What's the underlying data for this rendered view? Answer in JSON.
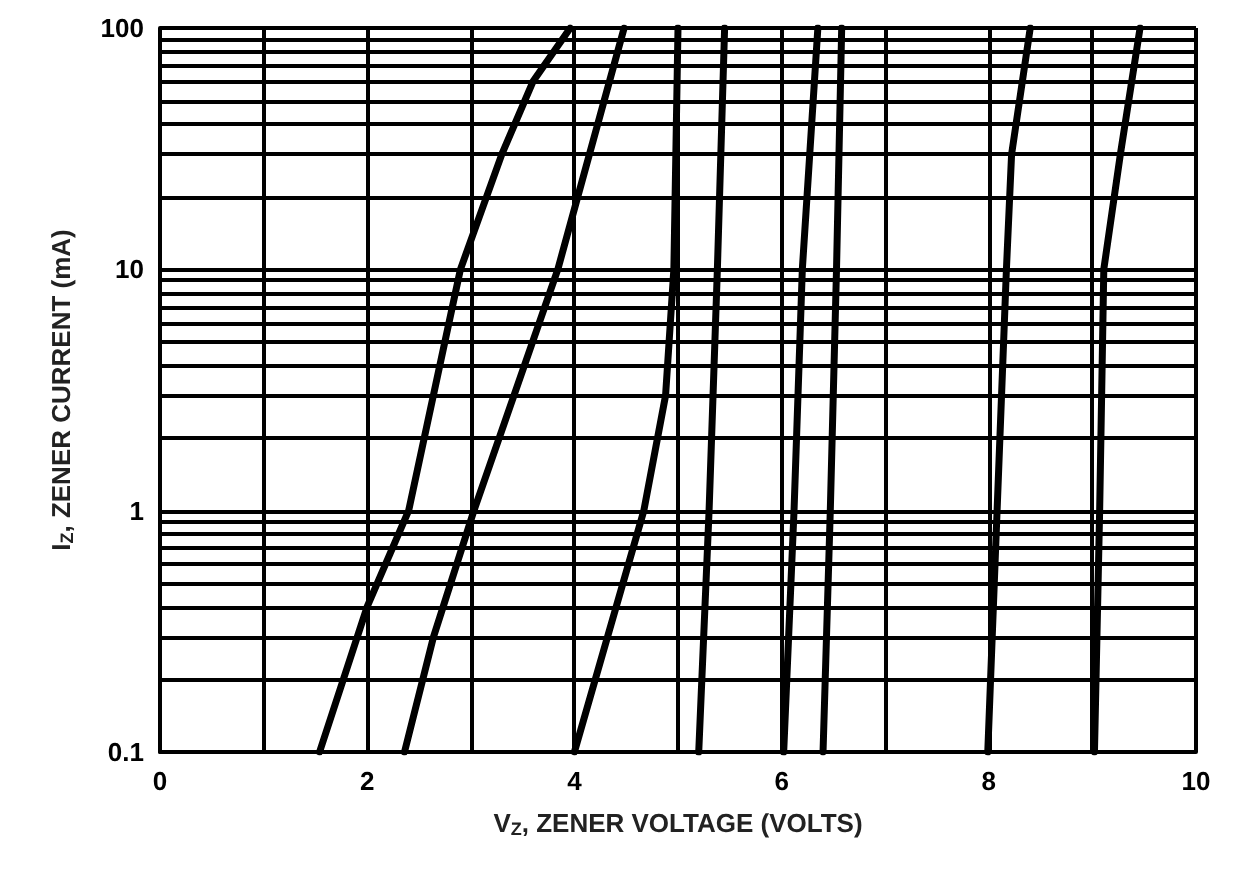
{
  "chart_data": {
    "type": "line",
    "xlabel": "V$_{Z}$, ZENER VOLTAGE (VOLTS)",
    "ylabel": "I$_{Z}$, ZENER CURRENT (mA)",
    "log": "y",
    "grid": true,
    "marker": "none",
    "line_style": "solid",
    "xlim": [
      0,
      10
    ],
    "ylim": [
      0.1,
      100
    ],
    "xticks": [
      0,
      {
        "value": 1,
        "label": null
      },
      2,
      {
        "value": 3,
        "label": null
      },
      4,
      {
        "value": 5,
        "label": null
      },
      6,
      {
        "value": 7,
        "label": null
      },
      8,
      {
        "value": 9,
        "label": null
      },
      10
    ],
    "yticks": [
      0.1,
      {
        "value": 0.2,
        "label": null
      },
      {
        "value": 0.3,
        "label": null
      },
      {
        "value": 0.4,
        "label": null
      },
      {
        "value": 0.5,
        "label": null
      },
      {
        "value": 0.6,
        "label": null
      },
      {
        "value": 0.7,
        "label": null
      },
      {
        "value": 0.8,
        "label": null
      },
      {
        "value": 0.9,
        "label": null
      },
      1,
      {
        "value": 2,
        "label": null
      },
      {
        "value": 3,
        "label": null
      },
      {
        "value": 4,
        "label": null
      },
      {
        "value": 5,
        "label": null
      },
      {
        "value": 6,
        "label": null
      },
      {
        "value": 7,
        "label": null
      },
      {
        "value": 8,
        "label": null
      },
      {
        "value": 9,
        "label": null
      },
      10,
      {
        "value": 20,
        "label": null
      },
      {
        "value": 30,
        "label": null
      },
      {
        "value": 40,
        "label": null
      },
      {
        "value": 50,
        "label": null
      },
      {
        "value": 60,
        "label": null
      },
      {
        "value": 70,
        "label": null
      },
      {
        "value": 80,
        "label": null
      },
      {
        "value": 90,
        "label": null
      },
      100
    ],
    "series": [
      {
        "color": "#000000",
        "x": [
          1.54,
          2.0,
          2.4,
          2.9,
          3.3,
          3.6,
          3.96
        ],
        "values": [
          0.1,
          0.4,
          1,
          10,
          30,
          60,
          100
        ]
      },
      {
        "color": "#000000",
        "x": [
          2.36,
          2.64,
          3.03,
          3.84,
          4.48
        ],
        "values": [
          0.1,
          0.3,
          1,
          10,
          100
        ]
      },
      {
        "color": "#000000",
        "x": [
          4.0,
          4.67,
          4.88,
          4.96,
          5.0
        ],
        "values": [
          0.1,
          1,
          3,
          10,
          100
        ]
      },
      {
        "color": "#000000",
        "x": [
          5.2,
          5.3,
          5.38,
          5.45
        ],
        "values": [
          0.1,
          1,
          10,
          100
        ]
      },
      {
        "color": "#000000",
        "x": [
          6.02,
          6.12,
          6.2,
          6.35
        ],
        "values": [
          0.1,
          1,
          10,
          100
        ]
      },
      {
        "color": "#000000",
        "x": [
          6.4,
          6.47,
          6.53,
          6.58
        ],
        "values": [
          0.1,
          1,
          10,
          100
        ]
      },
      {
        "color": "#000000",
        "x": [
          7.99,
          8.08,
          8.17,
          8.22,
          8.4
        ],
        "values": [
          0.1,
          1,
          10,
          30,
          100
        ]
      },
      {
        "color": "#000000",
        "x": [
          9.02,
          9.07,
          9.11,
          9.27,
          9.46
        ],
        "values": [
          0.1,
          1,
          10,
          30,
          100
        ]
      }
    ]
  }
}
